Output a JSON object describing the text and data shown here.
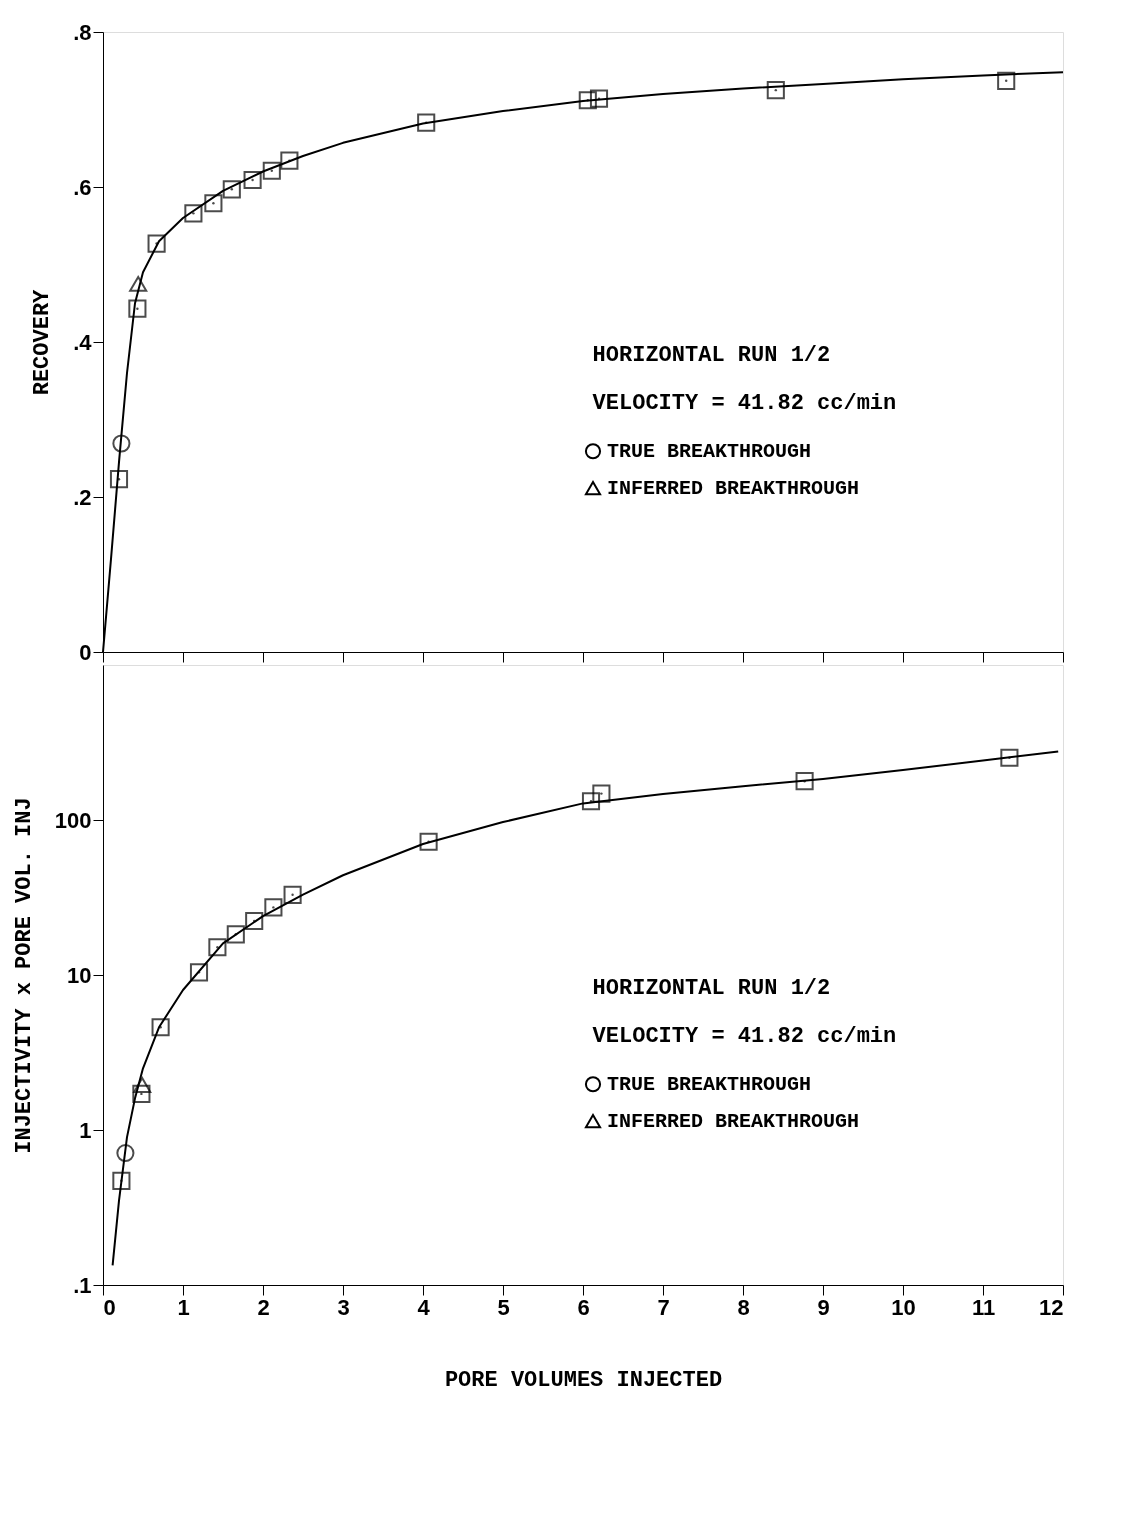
{
  "chart_data": [
    {
      "type": "scatter",
      "ylabel": "RECOVERY",
      "xlim": [
        0,
        12
      ],
      "xticks": [
        0,
        1,
        2,
        3,
        4,
        5,
        6,
        7,
        8,
        9,
        10,
        11,
        12
      ],
      "ylim": [
        0,
        0.8
      ],
      "yticks": [
        0,
        {
          "value": 0.2,
          "label": ".2"
        },
        {
          "value": 0.4,
          "label": ".4"
        },
        {
          "value": 0.6,
          "label": ".6"
        },
        {
          "value": 0.8,
          "label": ".8"
        }
      ],
      "tick_labels": "y",
      "grid": false,
      "legend": "right",
      "annotations": [
        "HORIZONTAL RUN 1/2",
        "VELOCITY = 41.82 cc/min"
      ],
      "series": [
        {
          "marker": "square",
          "color": "#000000",
          "x": [
            0.2,
            0.43,
            0.67,
            1.13,
            1.38,
            1.61,
            1.87,
            2.11,
            2.33,
            4.04,
            6.06,
            6.2,
            8.41,
            11.29
          ],
          "values": [
            0.223,
            0.443,
            0.527,
            0.566,
            0.579,
            0.597,
            0.609,
            0.621,
            0.634,
            0.683,
            0.712,
            0.714,
            0.725,
            0.737
          ]
        },
        {
          "name": "TRUE BREAKTHROUGH",
          "marker": "circle",
          "color": "#000000",
          "x": [
            0.23
          ],
          "values": [
            0.269
          ]
        },
        {
          "name": "INFERRED BREAKTHROUGH",
          "marker": "triangle",
          "color": "#000000",
          "x": [
            0.44
          ],
          "values": [
            0.475
          ]
        },
        {
          "type": "line",
          "marker": "none",
          "color": "#000000",
          "x": [
            0,
            0.1,
            0.2,
            0.3,
            0.4,
            0.5,
            0.7,
            1,
            1.5,
            2,
            2.5,
            3,
            4,
            5,
            6,
            7,
            8,
            9,
            10,
            11,
            12
          ],
          "values": [
            0,
            0.12,
            0.245,
            0.36,
            0.45,
            0.49,
            0.53,
            0.56,
            0.595,
            0.62,
            0.64,
            0.657,
            0.682,
            0.698,
            0.711,
            0.72,
            0.727,
            0.733,
            0.739,
            0.744,
            0.748
          ]
        }
      ]
    },
    {
      "type": "scatter",
      "ylabel": "INJECTIVITY x PORE VOL. INJ",
      "xlabel": "PORE VOLUMES INJECTED",
      "xlim": [
        0,
        12
      ],
      "xticks": [
        0,
        1,
        2,
        3,
        4,
        5,
        6,
        7,
        8,
        9,
        10,
        11,
        12
      ],
      "ylim": [
        0.1,
        1000
      ],
      "yticks": [
        {
          "value": 0.1,
          "label": ".1"
        },
        1,
        10,
        100
      ],
      "log": "y",
      "grid": false,
      "legend": "right",
      "annotations": [
        "HORIZONTAL RUN 1/2",
        "VELOCITY = 41.82 cc/min"
      ],
      "series": [
        {
          "marker": "square",
          "color": "#000000",
          "x": [
            0.23,
            0.48,
            0.72,
            1.2,
            1.43,
            1.66,
            1.89,
            2.13,
            2.37,
            4.07,
            6.1,
            6.23,
            8.77,
            11.33
          ],
          "values": [
            0.47,
            1.71,
            4.6,
            10.4,
            15.1,
            18.3,
            22.3,
            27.3,
            32.9,
            72.4,
            132,
            148,
            178,
            252
          ]
        },
        {
          "name": "TRUE BREAKTHROUGH",
          "marker": "circle",
          "color": "#000000",
          "x": [
            0.28
          ],
          "values": [
            0.71
          ]
        },
        {
          "name": "INFERRED BREAKTHROUGH",
          "marker": "triangle",
          "color": "#000000",
          "x": [
            0.49
          ],
          "values": [
            1.95
          ]
        },
        {
          "type": "line",
          "marker": "none",
          "color": "#000000",
          "x": [
            0.12,
            0.2,
            0.3,
            0.4,
            0.5,
            0.7,
            1,
            1.5,
            2,
            2.5,
            3,
            4,
            5,
            6,
            7,
            8,
            9,
            10,
            11,
            11.94
          ],
          "values": [
            0.134,
            0.35,
            0.9,
            1.6,
            2.5,
            4.6,
            8,
            16,
            24,
            33,
            44,
            70,
            97,
            128,
            147,
            165,
            184,
            210,
            242,
            277
          ]
        }
      ]
    }
  ]
}
